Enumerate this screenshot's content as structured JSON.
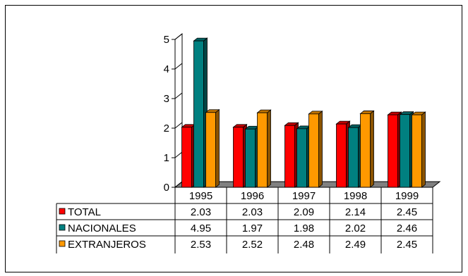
{
  "chart_data": {
    "type": "bar",
    "categories": [
      "1995",
      "1996",
      "1997",
      "1998",
      "1999"
    ],
    "series": [
      {
        "name": "TOTAL",
        "color": "#ff0000",
        "values": [
          2.03,
          2.03,
          2.09,
          2.14,
          2.45
        ]
      },
      {
        "name": "NACIONALES",
        "color": "#008080",
        "values": [
          4.95,
          1.97,
          1.98,
          2.02,
          2.46
        ]
      },
      {
        "name": "EXTRANJEROS",
        "color": "#ff9900",
        "values": [
          2.53,
          2.52,
          2.48,
          2.49,
          2.45
        ]
      }
    ],
    "yticks": [
      0,
      1,
      2,
      3,
      4,
      5
    ],
    "ylim": [
      0,
      5
    ],
    "legend": "data-table",
    "grid": false
  }
}
